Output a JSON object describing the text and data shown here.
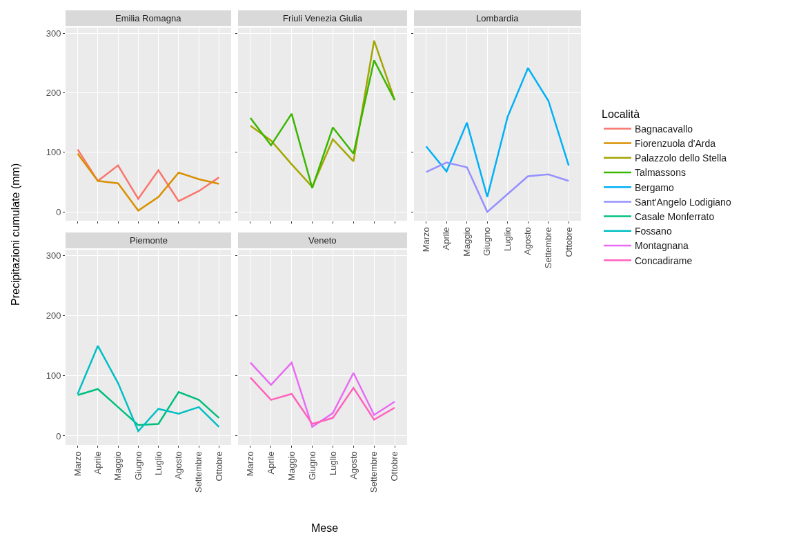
{
  "chart_data": [
    {
      "type": "line",
      "title": "Emilia Romagna",
      "ylabel": "Precipitazioni cumulate (mm)",
      "legend_title": "Località",
      "legend": "right",
      "grid": true,
      "marker": "none",
      "line_style": "solid",
      "tick_labels": "y",
      "categories": [
        "Marzo",
        "Aprile",
        "Maggio",
        "Giugno",
        "Luglio",
        "Agosto",
        "Settembre",
        "Ottobre"
      ],
      "ylim": [
        -15,
        310
      ],
      "yticks": [
        0,
        100,
        200,
        300
      ],
      "series": [
        {
          "name": "Bagnacavallo",
          "color": "#f8766d",
          "values": [
            105,
            52,
            78,
            22,
            70,
            18,
            35,
            58
          ]
        },
        {
          "name": "Fiorenzuola d'Arda",
          "color": "#d89000",
          "values": [
            98,
            52,
            48,
            2,
            25,
            66,
            55,
            47
          ]
        }
      ]
    },
    {
      "type": "line",
      "title": "Friuli Venezia Giulia",
      "legend": "right",
      "grid": true,
      "marker": "none",
      "line_style": "solid",
      "tick_labels": false,
      "categories": [
        "Marzo",
        "Aprile",
        "Maggio",
        "Giugno",
        "Luglio",
        "Agosto",
        "Settembre",
        "Ottobre"
      ],
      "ylim": [
        -15,
        310
      ],
      "yticks": [
        0,
        100,
        200,
        300
      ],
      "series": [
        {
          "name": "Palazzolo dello Stella",
          "color": "#a3a500",
          "values": [
            145,
            120,
            80,
            42,
            122,
            85,
            288,
            188
          ]
        },
        {
          "name": "Talmassons",
          "color": "#39b600",
          "values": [
            158,
            112,
            165,
            40,
            142,
            98,
            255,
            188
          ]
        }
      ]
    },
    {
      "type": "line",
      "title": "Lombardia",
      "legend": "right",
      "grid": true,
      "marker": "none",
      "line_style": "solid",
      "tick_labels": "x",
      "categories": [
        "Marzo",
        "Aprile",
        "Maggio",
        "Giugno",
        "Luglio",
        "Agosto",
        "Settembre",
        "Ottobre"
      ],
      "ylim": [
        -15,
        310
      ],
      "yticks": [
        0,
        100,
        200,
        300
      ],
      "series": [
        {
          "name": "Bergamo",
          "color": "#00b0f6",
          "values": [
            110,
            68,
            150,
            25,
            160,
            242,
            187,
            78
          ]
        },
        {
          "name": "Sant'Angelo Lodigiano",
          "color": "#9590ff",
          "values": [
            67,
            83,
            75,
            0,
            30,
            60,
            63,
            52
          ]
        }
      ]
    },
    {
      "type": "line",
      "title": "Piemonte",
      "legend": "right",
      "grid": true,
      "marker": "none",
      "line_style": "solid",
      "categories": [
        "Marzo",
        "Aprile",
        "Maggio",
        "Giugno",
        "Luglio",
        "Agosto",
        "Settembre",
        "Ottobre"
      ],
      "ylim": [
        -15,
        310
      ],
      "yticks": [
        0,
        100,
        200,
        300
      ],
      "series": [
        {
          "name": "Casale Monferrato",
          "color": "#00bf7d",
          "values": [
            68,
            78,
            48,
            18,
            20,
            73,
            60,
            30
          ]
        },
        {
          "name": "Fossano",
          "color": "#00bfc4",
          "values": [
            70,
            150,
            88,
            8,
            45,
            37,
            48,
            15
          ]
        }
      ]
    },
    {
      "type": "line",
      "title": "Veneto",
      "xlabel": "Mese",
      "legend": "right",
      "grid": true,
      "marker": "none",
      "line_style": "solid",
      "tick_labels": "x",
      "categories": [
        "Marzo",
        "Aprile",
        "Maggio",
        "Giugno",
        "Luglio",
        "Agosto",
        "Settembre",
        "Ottobre"
      ],
      "ylim": [
        -15,
        310
      ],
      "yticks": [
        0,
        100,
        200,
        300
      ],
      "series": [
        {
          "name": "Montagnana",
          "color": "#e76bf3",
          "values": [
            122,
            85,
            122,
            15,
            38,
            105,
            35,
            57
          ]
        },
        {
          "name": "Concadirame",
          "color": "#ff62bc",
          "values": [
            97,
            60,
            70,
            20,
            30,
            80,
            27,
            47
          ]
        }
      ]
    }
  ]
}
